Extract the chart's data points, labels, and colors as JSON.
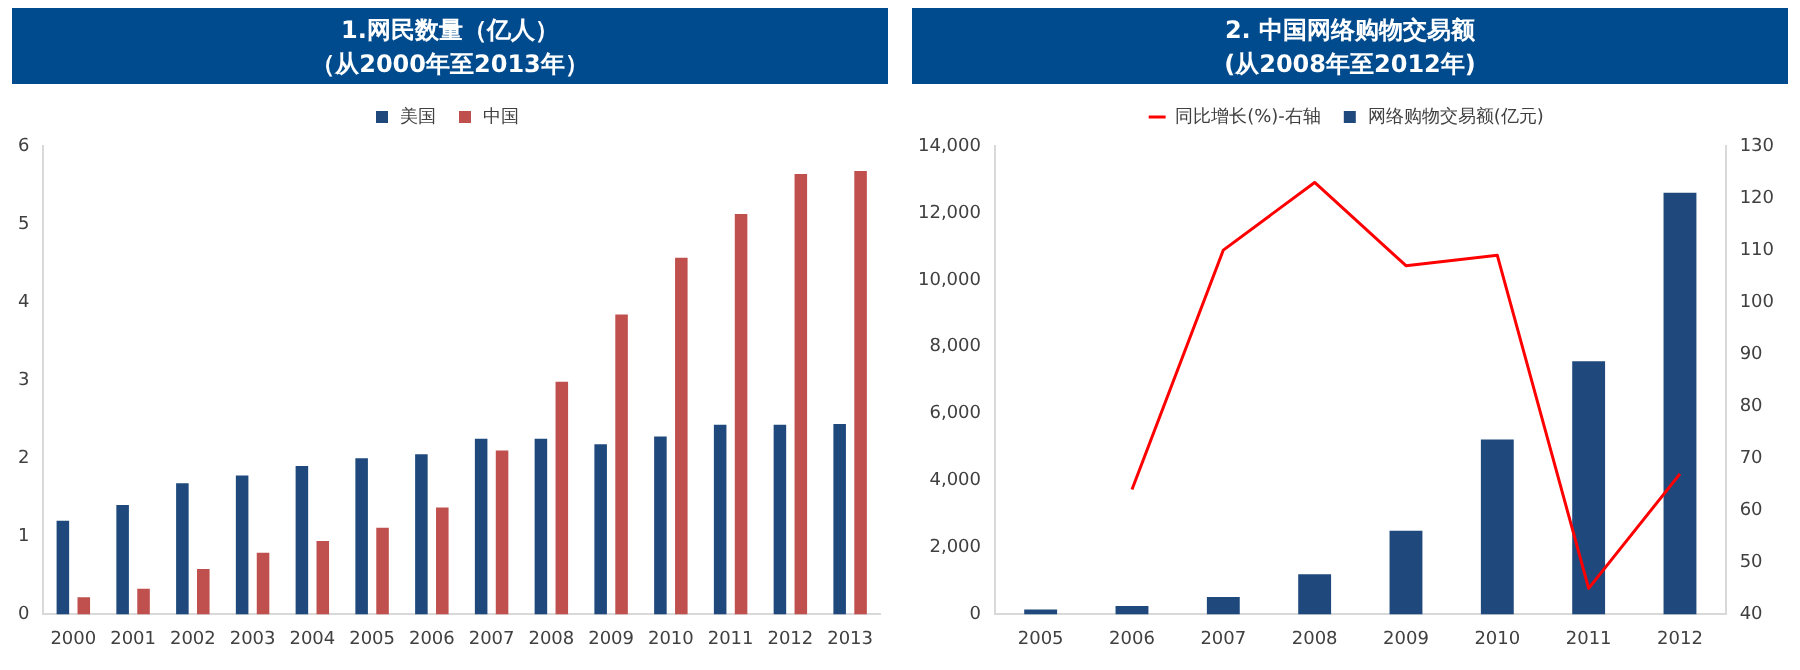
{
  "chart_data": [
    {
      "type": "bar",
      "title": "1.网民数量（亿人）",
      "subtitle": "（从2000年至2013年）",
      "categories": [
        "2000",
        "2001",
        "2002",
        "2003",
        "2004",
        "2005",
        "2006",
        "2007",
        "2008",
        "2009",
        "2010",
        "2011",
        "2012",
        "2013"
      ],
      "series": [
        {
          "name": "美国",
          "color": "#1f497d",
          "values": [
            1.2,
            1.4,
            1.68,
            1.78,
            1.9,
            2.0,
            2.05,
            2.25,
            2.25,
            2.18,
            2.28,
            2.43,
            2.43,
            2.44
          ]
        },
        {
          "name": "中国",
          "color": "#c0504d",
          "values": [
            0.22,
            0.33,
            0.58,
            0.79,
            0.94,
            1.11,
            1.37,
            2.1,
            2.98,
            3.84,
            4.57,
            5.13,
            5.64,
            5.68
          ]
        }
      ],
      "ylim": [
        0,
        6
      ],
      "yticks": [
        0,
        1,
        2,
        3,
        4,
        5,
        6
      ],
      "grid": false,
      "legend": "top"
    },
    {
      "type": "bar",
      "title": "2. 中国网络购物交易额",
      "subtitle": "(从2008年至2012年)",
      "categories": [
        "2005",
        "2006",
        "2007",
        "2008",
        "2009",
        "2010",
        "2011",
        "2012"
      ],
      "series": [
        {
          "name": "网络购物交易额(亿元)",
          "color": "#1f497d",
          "values": [
            150,
            250,
            520,
            1200,
            2500,
            5230,
            7570,
            12600
          ]
        },
        {
          "name": "同比增长(%)-右轴",
          "type": "line",
          "axis": "y2",
          "color": "#ff0000",
          "values": [
            null,
            64,
            110,
            123,
            107,
            109,
            45,
            67
          ]
        }
      ],
      "ylim": [
        0,
        14000
      ],
      "yticks": [
        0,
        {
          "value": 2000,
          "label": "2,000"
        },
        {
          "value": 4000,
          "label": "4,000"
        },
        {
          "value": 6000,
          "label": "6,000"
        },
        {
          "value": 8000,
          "label": "8,000"
        },
        {
          "value": 10000,
          "label": "10,000"
        },
        {
          "value": 12000,
          "label": "12,000"
        },
        {
          "value": 14000,
          "label": "14,000"
        }
      ],
      "y2lim": [
        40,
        130
      ],
      "y2ticks": [
        40,
        50,
        60,
        70,
        80,
        90,
        100,
        110,
        120,
        130
      ],
      "grid": false,
      "legend": "top",
      "marker": "none"
    }
  ]
}
